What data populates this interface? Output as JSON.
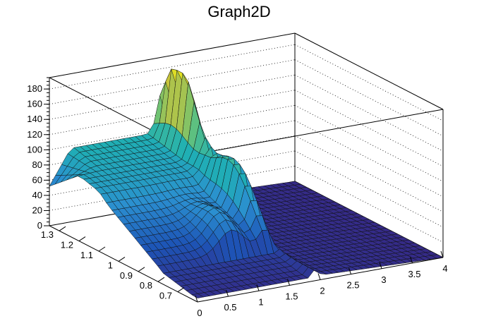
{
  "chart_data": {
    "type": "surface3d",
    "title": "Graph2D",
    "palette": [
      "#352a87",
      "#1d54b6",
      "#2b8fd0",
      "#1fb0b3",
      "#64c27a",
      "#c7c43b",
      "#f9fb0e"
    ],
    "x": {
      "min": 0,
      "max": 4,
      "ticks": [
        "0",
        "0.5",
        "1",
        "1.5",
        "2",
        "2.5",
        "3",
        "3.5",
        "4"
      ]
    },
    "y": {
      "min": 0.6,
      "max": 1.35,
      "ticks": [
        "0.7",
        "0.8",
        "0.9",
        "1",
        "1.1",
        "1.2",
        "1.3"
      ]
    },
    "z": {
      "min": 0,
      "max": 195,
      "ticks": [
        "0",
        "20",
        "40",
        "60",
        "80",
        "100",
        "120",
        "140",
        "160",
        "180"
      ]
    }
  }
}
